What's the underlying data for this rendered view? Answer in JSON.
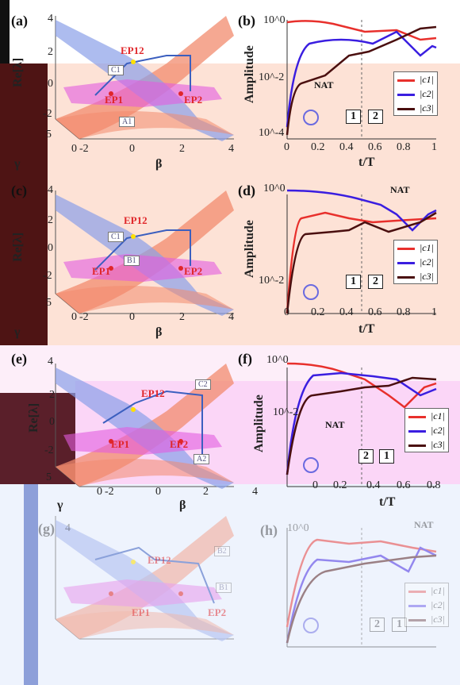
{
  "panels": [
    {
      "id": "a",
      "label": "(a)",
      "ylabel": "Re[λ]",
      "xlabel_gamma": "γ",
      "xlabel_beta": "β",
      "yticks": [
        "4",
        "2",
        "0",
        "-2"
      ],
      "gamma_ticks": [
        "5",
        "0"
      ],
      "beta_ticks": [
        "-2",
        "0",
        "2",
        "4"
      ],
      "ep_labels": [
        "EP12",
        "EP1",
        "EP2"
      ],
      "boxes": [
        "C1",
        "A1"
      ]
    },
    {
      "id": "c",
      "label": "(c)",
      "ylabel": "Re[λ]",
      "xlabel_gamma": "γ",
      "xlabel_beta": "β",
      "yticks": [
        "4",
        "2",
        "0",
        "-2"
      ],
      "gamma_ticks": [
        "5",
        "0"
      ],
      "beta_ticks": [
        "-2",
        "0",
        "2",
        "4"
      ],
      "ep_labels": [
        "EP12",
        "EP1",
        "EP2"
      ],
      "boxes": [
        "C1",
        "B1"
      ]
    },
    {
      "id": "e",
      "label": "(e)",
      "ylabel": "Re[λ]",
      "xlabel_gamma": "γ",
      "xlabel_beta": "β",
      "yticks": [
        "4",
        "2",
        "0",
        "-2"
      ],
      "gamma_ticks": [
        "5",
        "0"
      ],
      "beta_ticks": [
        "-2",
        "0",
        "2",
        "4"
      ],
      "ep_labels": [
        "EP12",
        "EP1",
        "EP2"
      ],
      "boxes": [
        "C2",
        "A2"
      ]
    },
    {
      "id": "g",
      "label": "(g)",
      "ylabel": "",
      "xlabel_gamma": "",
      "xlabel_beta": "",
      "yticks": [
        "4"
      ],
      "gamma_ticks": [],
      "beta_ticks": [],
      "ep_labels": [
        "EP12",
        "EP1",
        "EP2"
      ],
      "boxes": [
        "B2",
        "B1"
      ]
    }
  ],
  "amp_panels": [
    {
      "id": "b",
      "label": "(b)",
      "ylabel": "Amplitude",
      "xlabel": "t/T",
      "yticks": [
        "10^0",
        "10^-2",
        "10^-4"
      ],
      "xticks": [
        "0",
        "0.2",
        "0.4",
        "0.6",
        "0.8",
        "1"
      ],
      "nat": "NAT",
      "sequence": [
        "1",
        "2"
      ],
      "legend": [
        "|c1|",
        "|c2|",
        "|c3|"
      ]
    },
    {
      "id": "d",
      "label": "(d)",
      "ylabel": "Amplitude",
      "xlabel": "t/T",
      "yticks": [
        "10^0",
        "10^-2"
      ],
      "xticks": [
        "0",
        "0.2",
        "0.4",
        "0.6",
        "0.8",
        "1"
      ],
      "nat": "NAT",
      "sequence": [
        "1",
        "2"
      ],
      "legend": [
        "|c1|",
        "|c2|",
        "|c3|"
      ]
    },
    {
      "id": "f",
      "label": "(f)",
      "ylabel": "Amplitude",
      "xlabel": "t/T",
      "yticks": [
        "10^0",
        "10^-2"
      ],
      "xticks": [
        "0",
        "0.2",
        "0.4",
        "0.6",
        "0.8"
      ],
      "nat": "NAT",
      "sequence": [
        "2",
        "1"
      ],
      "legend": [
        "|c1|",
        "|c2|",
        "|c3|"
      ]
    },
    {
      "id": "h",
      "label": "(h)",
      "ylabel": "",
      "xlabel": "",
      "yticks": [
        "10^0"
      ],
      "xticks": [],
      "nat": "NAT",
      "sequence": [
        "2",
        "1"
      ],
      "legend": [
        "|c1|",
        "|c2|",
        "|c3|"
      ]
    }
  ],
  "colors": {
    "c1": "#e8302c",
    "c2": "#3a1ee0",
    "c3": "#4a0f0f",
    "sheet_red": "#f28b6e",
    "sheet_blue": "#8aa0e8",
    "sheet_pink": "#e35ce0"
  }
}
